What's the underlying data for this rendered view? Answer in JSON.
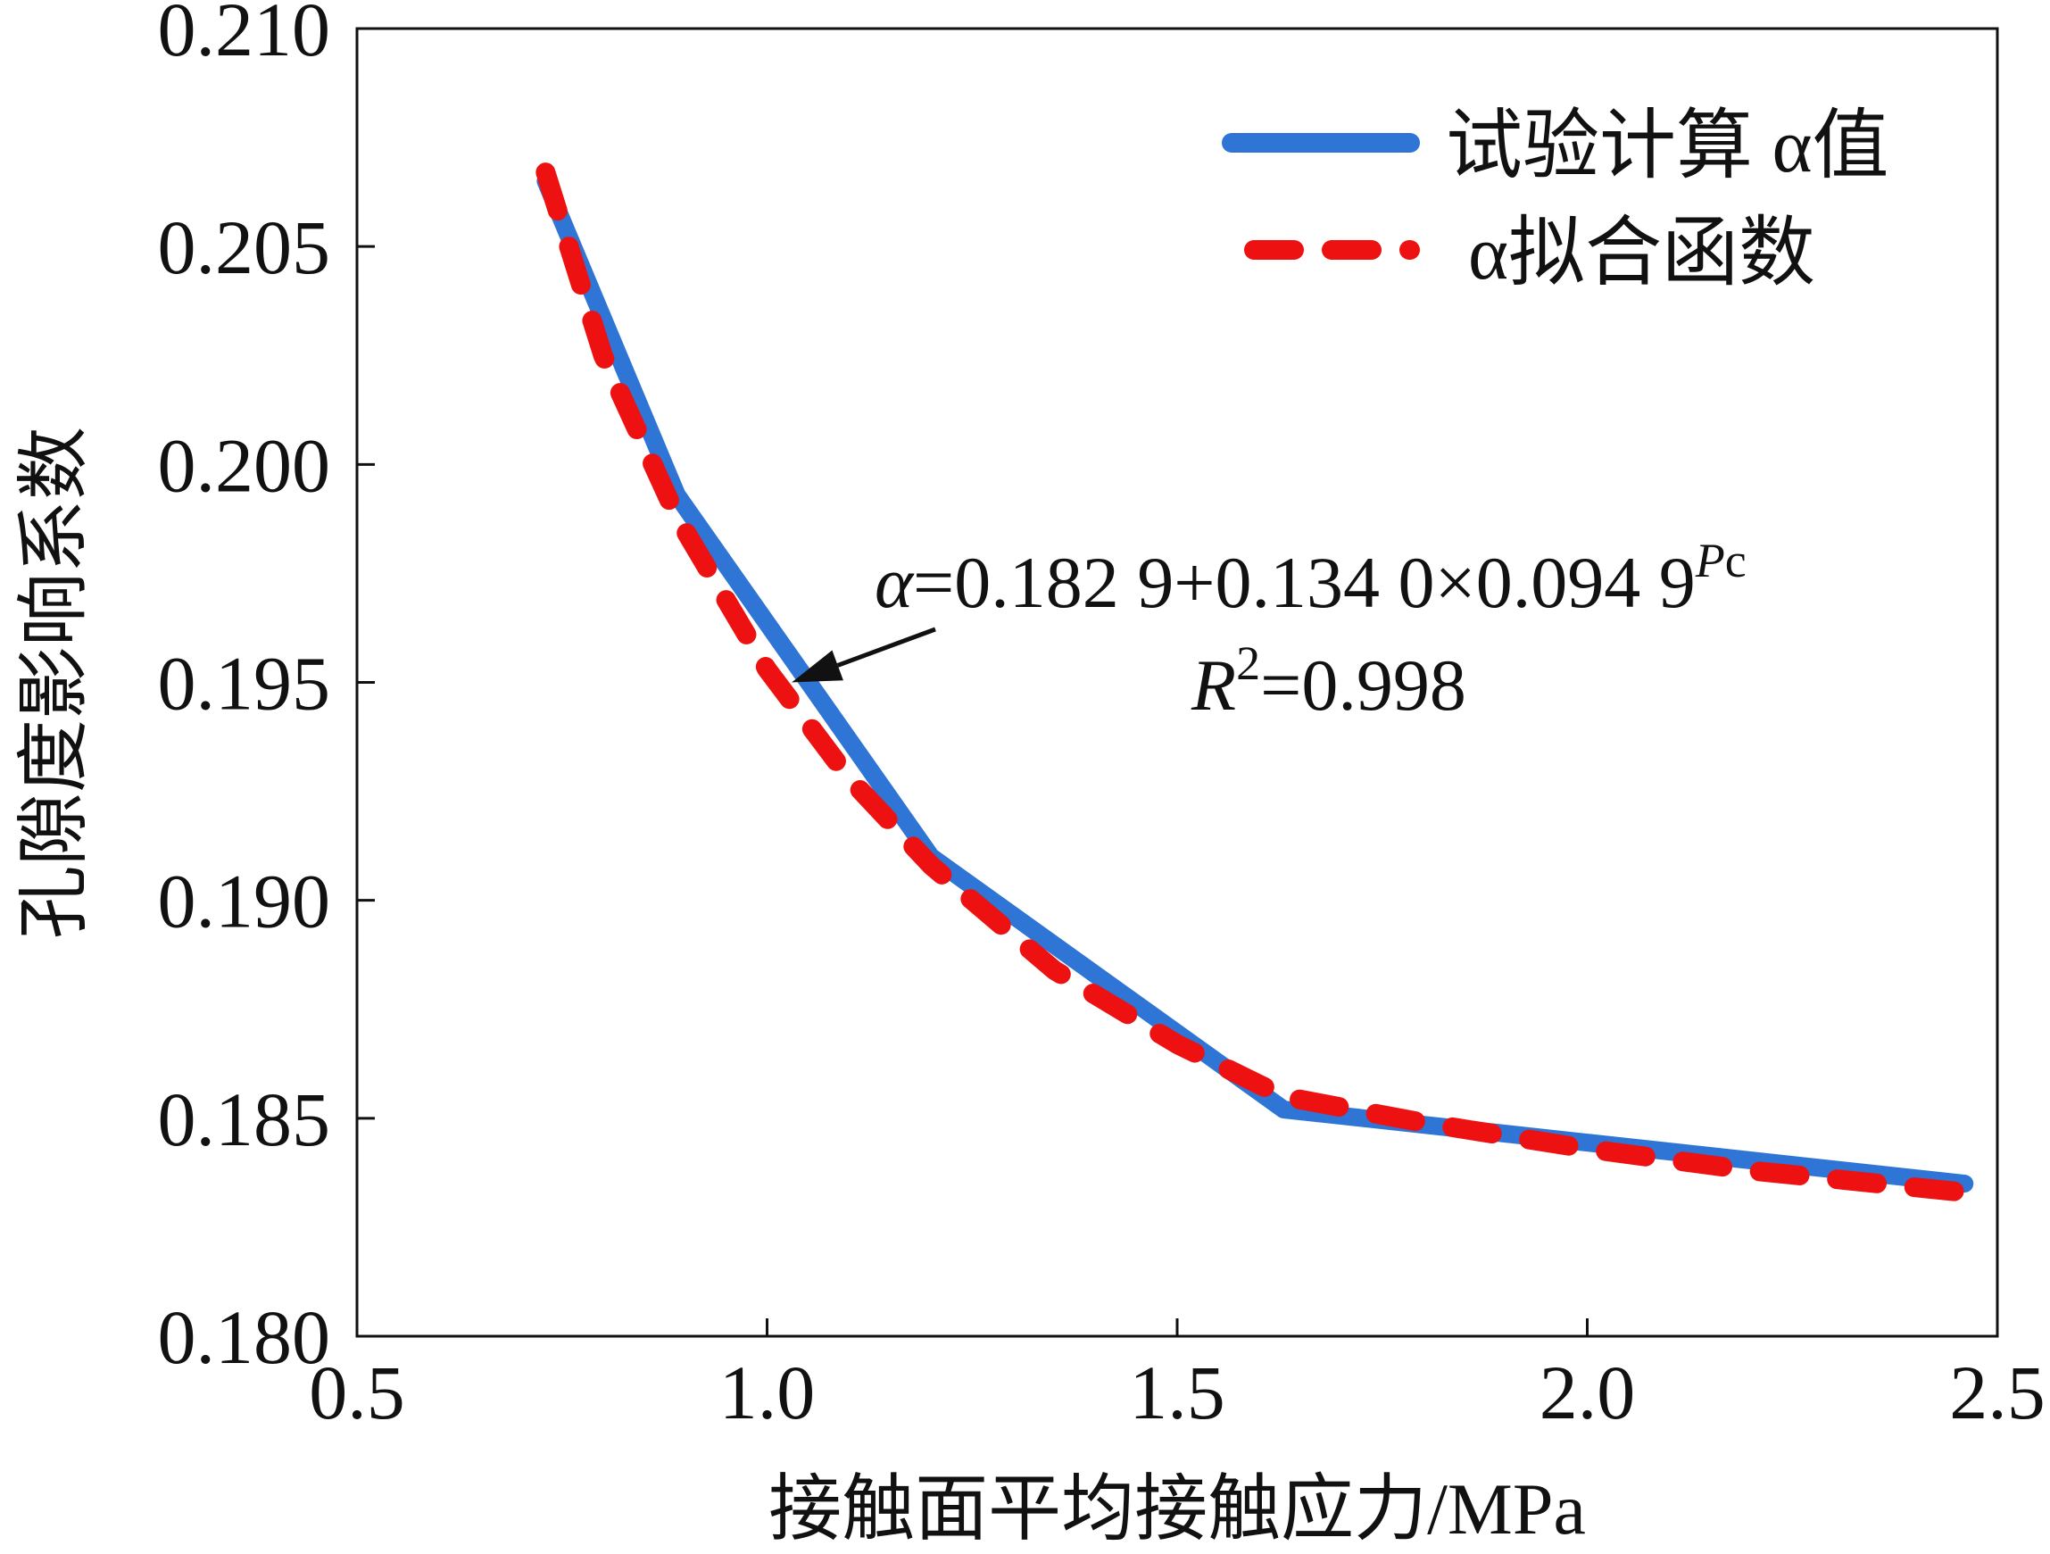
{
  "chart_data": {
    "type": "line",
    "xlabel": "接触面平均接触应力/MPa",
    "ylabel": "孔隙度影响系数",
    "xlim": [
      0.5,
      2.5
    ],
    "ylim": [
      0.18,
      0.21
    ],
    "x_ticks": [
      "0.5",
      "1.0",
      "1.5",
      "2.0",
      "2.5"
    ],
    "y_ticks": [
      "0.180",
      "0.185",
      "0.190",
      "0.195",
      "0.200",
      "0.205",
      "0.210"
    ],
    "grid": false,
    "legend_position": "top-right",
    "series": [
      {
        "name": "试验计算 α值",
        "style": "solid",
        "color": "#2e75d6",
        "x": [
          0.73,
          0.89,
          1.2,
          1.63,
          2.46
        ],
        "y": [
          0.2065,
          0.1993,
          0.191,
          0.1852,
          0.1835
        ]
      },
      {
        "name": "α拟合函数",
        "style": "dashed",
        "color": "#ee1111",
        "x": [
          0.73,
          0.8,
          0.89,
          1.0,
          1.1,
          1.2,
          1.35,
          1.5,
          1.63,
          1.8,
          2.0,
          2.2,
          2.46
        ],
        "y": [
          0.2067,
          0.2025,
          0.1988,
          0.1953,
          0.1928,
          0.1908,
          0.1884,
          0.1867,
          0.1855,
          0.1849,
          0.1843,
          0.1838,
          0.1833
        ]
      }
    ],
    "annotation": {
      "equation_prefix": "α",
      "equation_body": "=0.182 9+0.134 0×0.094 9",
      "equation_sup_p": "P",
      "equation_sup_c": "c",
      "r2_symbol": "R",
      "r2_exponent": "2",
      "r2_value": "=0.998",
      "arrow_to": [
        1.03,
        0.195
      ]
    }
  }
}
